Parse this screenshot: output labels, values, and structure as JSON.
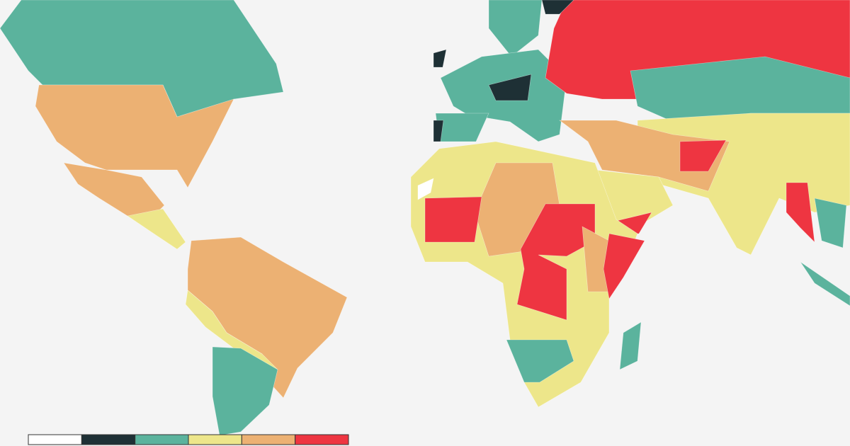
{
  "legend": {
    "colors": [
      "#ffffff",
      "#1e3035",
      "#5bb39d",
      "#ede68a",
      "#ecb173",
      "#ee3541"
    ]
  }
}
